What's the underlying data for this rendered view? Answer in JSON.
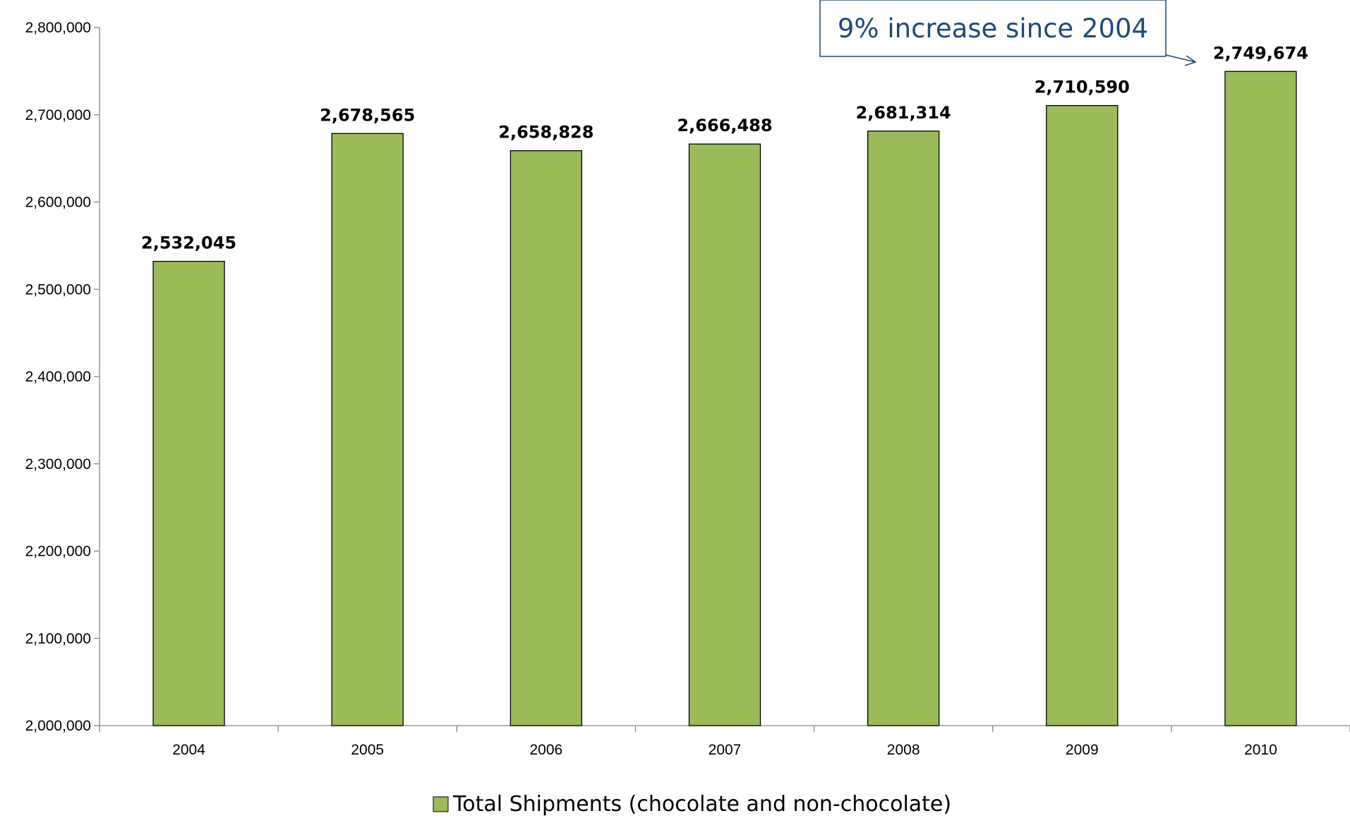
{
  "chart_data": {
    "type": "bar",
    "categories": [
      "2004",
      "2005",
      "2006",
      "2007",
      "2008",
      "2009",
      "2010"
    ],
    "series": [
      {
        "name": "Total Shipments (chocolate and non-chocolate)",
        "values": [
          2532045,
          2678565,
          2658828,
          2666488,
          2681314,
          2710590,
          2749674
        ],
        "value_labels": [
          "2,532,045",
          "2,678,565",
          "2,658,828",
          "2,666,488",
          "2,681,314",
          "2,710,590",
          "2,749,674"
        ]
      }
    ],
    "title": "",
    "xlabel": "",
    "ylabel": "",
    "ylim": [
      2000000,
      2800000
    ],
    "yticks": [
      2000000,
      2100000,
      2200000,
      2300000,
      2400000,
      2500000,
      2600000,
      2700000,
      2800000
    ],
    "ytick_labels": [
      "2,000,000",
      "2,100,000",
      "2,200,000",
      "2,300,000",
      "2,400,000",
      "2,500,000",
      "2,600,000",
      "2,700,000",
      "2,800,000"
    ],
    "grid": false,
    "legend_position": "bottom",
    "bar_color": "#9bbb59",
    "bar_edge_color": "#000000",
    "annotation": {
      "text": "9% increase since 2004",
      "points_to": "2010",
      "color": "#1f497d"
    }
  }
}
